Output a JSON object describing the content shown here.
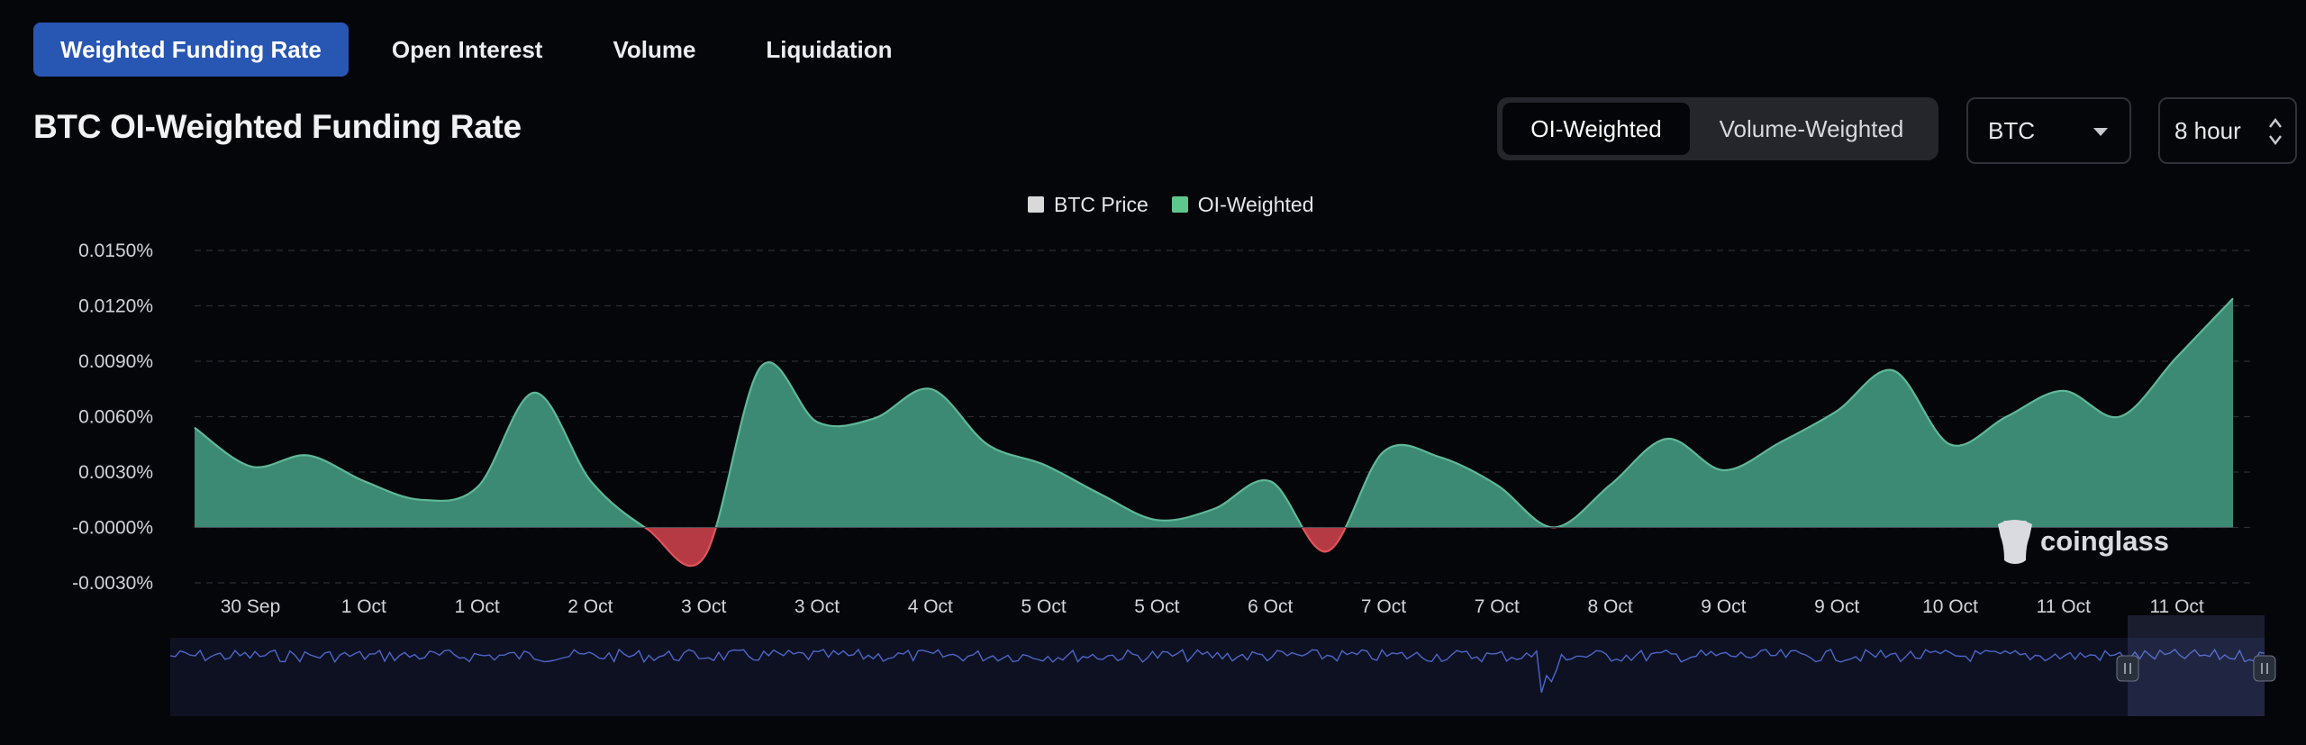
{
  "tabs": [
    {
      "label": "Weighted Funding Rate",
      "active": true
    },
    {
      "label": "Open Interest",
      "active": false
    },
    {
      "label": "Volume",
      "active": false
    },
    {
      "label": "Liquidation",
      "active": false
    }
  ],
  "title": "BTC OI-Weighted Funding Rate",
  "toggle": {
    "options": [
      "OI-Weighted",
      "Volume-Weighted"
    ],
    "selected": "OI-Weighted"
  },
  "coin_select": {
    "value": "BTC"
  },
  "interval_select": {
    "value": "8 hour"
  },
  "watermark": "coinglass",
  "colors": {
    "positive": "#3c8a74",
    "positive_line": "#5fb898",
    "negative": "#b53a43",
    "negative_line": "#e0535d",
    "price_legend": "#d9d9d9",
    "oi_legend": "#5ec88c",
    "accent": "#2856b3",
    "navigator_line": "#4d66c7"
  },
  "chart_data": {
    "type": "area",
    "legend": [
      {
        "name": "BTC Price",
        "color": "#d9d9d9"
      },
      {
        "name": "OI-Weighted",
        "color": "#5ec88c"
      }
    ],
    "legend_position": "top-center",
    "y_tick_labels": [
      "0.0150%",
      "0.0120%",
      "0.0090%",
      "0.0060%",
      "0.0030%",
      "-0.0000%",
      "-0.0030%"
    ],
    "y_ticks": [
      0.015,
      0.012,
      0.009,
      0.006,
      0.003,
      0,
      -0.003
    ],
    "ylim": [
      -0.003,
      0.015
    ],
    "x_tick_labels": [
      "30 Sep",
      "1 Oct",
      "1 Oct",
      "2 Oct",
      "3 Oct",
      "3 Oct",
      "4 Oct",
      "5 Oct",
      "5 Oct",
      "6 Oct",
      "7 Oct",
      "7 Oct",
      "8 Oct",
      "9 Oct",
      "9 Oct",
      "10 Oct",
      "11 Oct",
      "11 Oct"
    ],
    "grid": "horizontal-dashed",
    "series": [
      {
        "name": "OI-Weighted",
        "unit": "%",
        "x_index": [
          0,
          1,
          2,
          3,
          4,
          5,
          6,
          7,
          8,
          9,
          10,
          11,
          12,
          13,
          14,
          15,
          16,
          17,
          18,
          19,
          20,
          21,
          22,
          23,
          24,
          25,
          26,
          27,
          28,
          29,
          30,
          31,
          32,
          33,
          34,
          35,
          36
        ],
        "values": [
          0.0054,
          0.0033,
          0.0039,
          0.0025,
          0.0015,
          0.0022,
          0.0073,
          0.0025,
          -0.0001,
          -0.0016,
          0.0087,
          0.0057,
          0.0059,
          0.0075,
          0.0045,
          0.0034,
          0.0018,
          0.0004,
          0.001,
          0.0025,
          -0.0013,
          0.0041,
          0.0038,
          0.0023,
          0.0,
          0.0023,
          0.0048,
          0.0031,
          0.0046,
          0.0063,
          0.0085,
          0.0045,
          0.006,
          0.0074,
          0.006,
          0.0092,
          0.0124
        ]
      }
    ],
    "navigator": {
      "series": "BTC Price",
      "selected_range": "last ~7%"
    }
  }
}
